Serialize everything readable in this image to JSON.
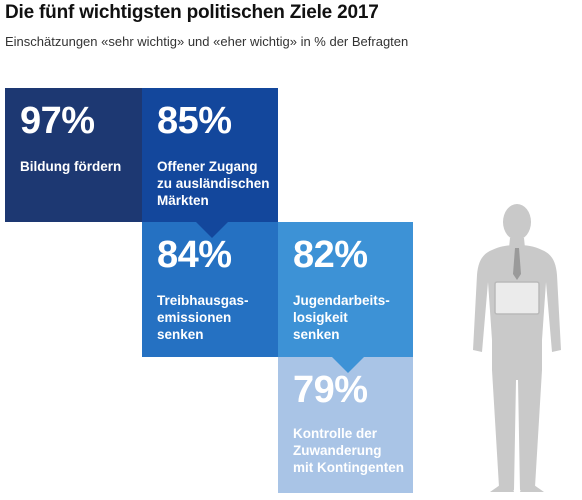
{
  "title": "Die fünf wichtigsten politischen Ziele 2017",
  "subtitle": "Einschätzungen «sehr wichtig» und «eher wichtig» in % der Befragten",
  "colors": {
    "box1": "#1d3872",
    "box2": "#13479c",
    "box3": "#2571c2",
    "box4": "#3d92d6",
    "box5": "#a9c4e6",
    "figure": "#c9c9c9"
  },
  "boxes": [
    {
      "percent": "97%",
      "lines": [
        "Bildung fördern"
      ]
    },
    {
      "percent": "85%",
      "lines": [
        "Offener Zugang",
        "zu ausländischen",
        "Märkten"
      ]
    },
    {
      "percent": "84%",
      "lines": [
        "Treibhausgas-",
        "emissionen",
        "senken"
      ]
    },
    {
      "percent": "82%",
      "lines": [
        "Jugendarbeits-",
        "losigkeit",
        "senken"
      ]
    },
    {
      "percent": "79%",
      "lines": [
        "Kontrolle der",
        "Zuwanderung",
        "mit Kontingenten"
      ]
    }
  ],
  "chart_data": {
    "type": "bar",
    "title": "Die fünf wichtigsten politischen Ziele 2017",
    "subtitle": "Einschätzungen «sehr wichtig» und «eher wichtig» in % der Befragten",
    "categories": [
      "Bildung fördern",
      "Offener Zugang zu ausländischen Märkten",
      "Treibhausgasemissionen senken",
      "Jugendarbeitslosigkeit senken",
      "Kontrolle der Zuwanderung mit Kontingenten"
    ],
    "values": [
      97,
      85,
      84,
      82,
      79
    ],
    "unit": "%"
  }
}
